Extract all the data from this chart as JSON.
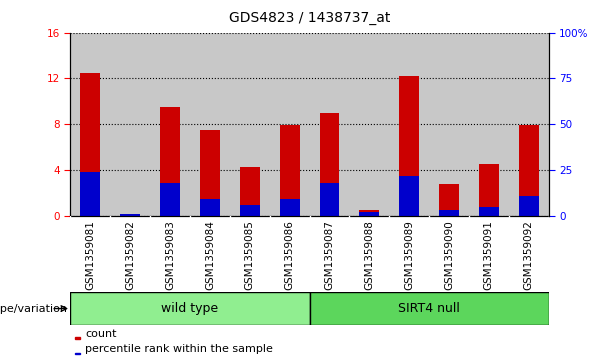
{
  "title": "GDS4823 / 1438737_at",
  "samples": [
    "GSM1359081",
    "GSM1359082",
    "GSM1359083",
    "GSM1359084",
    "GSM1359085",
    "GSM1359086",
    "GSM1359087",
    "GSM1359088",
    "GSM1359089",
    "GSM1359090",
    "GSM1359091",
    "GSM1359092"
  ],
  "count_values": [
    12.5,
    0.2,
    9.5,
    7.5,
    4.3,
    7.9,
    9.0,
    0.5,
    12.2,
    2.8,
    4.5,
    7.9
  ],
  "percentile_values": [
    24,
    1,
    18,
    9,
    6,
    9,
    18,
    2,
    22,
    3,
    5,
    11
  ],
  "left_ylim": [
    0,
    16
  ],
  "right_ylim": [
    0,
    100
  ],
  "left_yticks": [
    0,
    4,
    8,
    12,
    16
  ],
  "right_yticks": [
    0,
    25,
    50,
    75,
    100
  ],
  "right_yticklabels": [
    "0",
    "25",
    "50",
    "75",
    "100%"
  ],
  "count_color": "#CC0000",
  "percentile_color": "#0000CC",
  "bar_width": 0.5,
  "plot_bg_color": "#C8C8C8",
  "xticklabels_bg": "#C8C8C8",
  "wt_color": "#90EE90",
  "sirt4_color": "#5CD65C",
  "legend_count": "count",
  "legend_percentile": "percentile rank within the sample",
  "genotype_label": "genotype/variation",
  "wild_type_label": "wild type",
  "sirt4_null_label": "SIRT4 null",
  "title_fontsize": 10,
  "tick_fontsize": 7.5,
  "label_fontsize": 8,
  "group_fontsize": 9
}
